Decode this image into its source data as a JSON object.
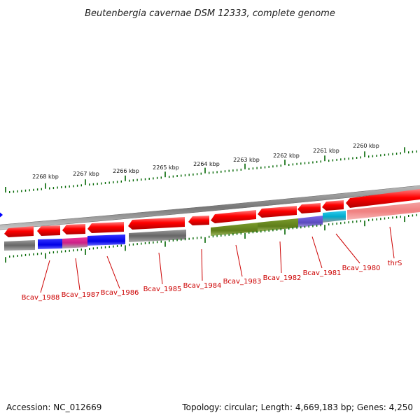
{
  "title": "Beutenbergia cavernae DSM 12333, complete genome",
  "footer": {
    "accession": "Accession: NC_012669",
    "summary": "Topology: circular; Length: 4,669,183 bp; Genes: 4,250"
  },
  "scale_labels": [
    "2268 kbp",
    "2267 kbp",
    "2266 kbp",
    "2265 kbp",
    "2264 kbp",
    "2263 kbp",
    "2262 kbp",
    "2261 kbp",
    "2260 kbp"
  ],
  "gene_labels": [
    "Bcav_1988",
    "Bcav_1987",
    "Bcav_1986",
    "Bcav_1985",
    "Bcav_1984",
    "Bcav_1983",
    "Bcav_1982",
    "Bcav_1981",
    "Bcav_1980",
    "thrS"
  ],
  "colors": {
    "cds": "#ff0000",
    "label": "#cc0000",
    "tick": "#006600",
    "backbone": "#888888",
    "marker": "#0000ff",
    "feature_gray": "#666666",
    "feature_blue": "#0000ee",
    "feature_magenta": "#dd3399",
    "feature_olive": "#6b8e23",
    "feature_purple": "#6a5acd",
    "feature_cyan": "#00bcd4",
    "feature_pink": "#f08080"
  }
}
